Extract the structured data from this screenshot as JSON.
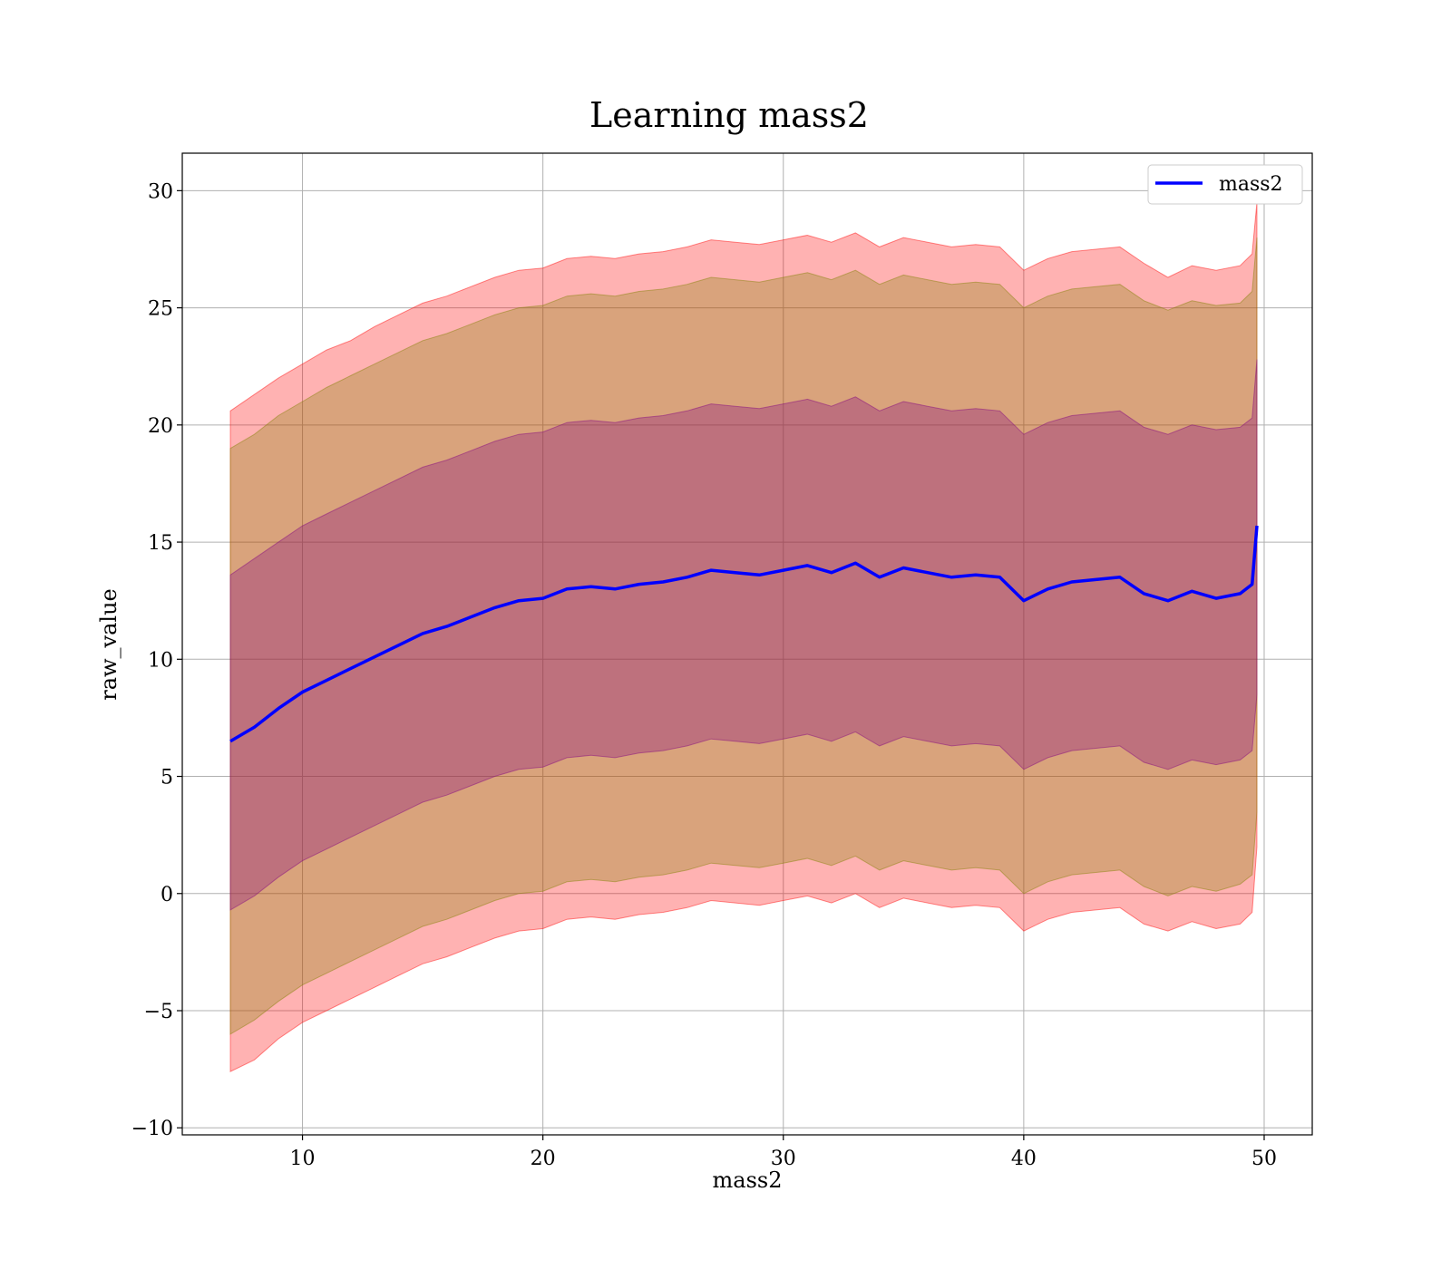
{
  "chart_data": {
    "type": "line",
    "title": "Learning mass2",
    "xlabel": "mass2",
    "ylabel": "raw_value",
    "xlim": [
      5,
      52
    ],
    "ylim": [
      -10.3,
      31.6
    ],
    "xticks": [
      10,
      20,
      30,
      40,
      50
    ],
    "yticks": [
      -10,
      -5,
      0,
      5,
      10,
      15,
      20,
      25,
      30
    ],
    "grid": true,
    "legend_position": "top-right",
    "series": [
      {
        "name": "mass2",
        "color": "#0000ff",
        "x": [
          7.0,
          8.0,
          9.0,
          10.0,
          11.0,
          12.0,
          13.0,
          14.0,
          15.0,
          16.0,
          17.0,
          18.0,
          19.0,
          20.0,
          21.0,
          22.0,
          23.0,
          24.0,
          25.0,
          26.0,
          27.0,
          28.0,
          29.0,
          30.0,
          31.0,
          32.0,
          33.0,
          34.0,
          35.0,
          36.0,
          37.0,
          38.0,
          39.0,
          40.0,
          41.0,
          42.0,
          43.0,
          44.0,
          45.0,
          46.0,
          47.0,
          48.0,
          49.0,
          49.5,
          49.7
        ],
        "values": [
          6.5,
          7.1,
          7.9,
          8.6,
          9.1,
          9.6,
          10.1,
          10.6,
          11.1,
          11.4,
          11.8,
          12.2,
          12.5,
          12.6,
          13.0,
          13.1,
          13.0,
          13.2,
          13.3,
          13.5,
          13.8,
          13.7,
          13.6,
          13.8,
          14.0,
          13.7,
          14.1,
          13.5,
          13.9,
          13.7,
          13.5,
          13.6,
          13.5,
          12.5,
          13.0,
          13.3,
          13.4,
          13.5,
          12.8,
          12.5,
          12.9,
          12.6,
          12.8,
          13.2,
          15.7
        ]
      }
    ],
    "bands": [
      {
        "color": "#ff0000",
        "opacity": 0.3,
        "x": [
          7.0,
          8.0,
          9.0,
          10.0,
          11.0,
          12.0,
          13.0,
          14.0,
          15.0,
          16.0,
          17.0,
          18.0,
          19.0,
          20.0,
          21.0,
          22.0,
          23.0,
          24.0,
          25.0,
          26.0,
          27.0,
          28.0,
          29.0,
          30.0,
          31.0,
          32.0,
          33.0,
          34.0,
          35.0,
          36.0,
          37.0,
          38.0,
          39.0,
          40.0,
          41.0,
          42.0,
          43.0,
          44.0,
          45.0,
          46.0,
          47.0,
          48.0,
          49.0,
          49.5,
          49.7
        ],
        "upper": [
          20.6,
          21.3,
          22.0,
          22.6,
          23.2,
          23.6,
          24.2,
          24.7,
          25.2,
          25.5,
          25.9,
          26.3,
          26.6,
          26.7,
          27.1,
          27.2,
          27.1,
          27.3,
          27.4,
          27.6,
          27.9,
          27.8,
          27.7,
          27.9,
          28.1,
          27.8,
          28.2,
          27.6,
          28.0,
          27.8,
          27.6,
          27.7,
          27.6,
          26.6,
          27.1,
          27.4,
          27.5,
          27.6,
          26.9,
          26.3,
          26.8,
          26.6,
          26.8,
          27.3,
          29.5
        ],
        "lower": [
          -7.6,
          -7.1,
          -6.2,
          -5.5,
          -5.0,
          -4.5,
          -4.0,
          -3.5,
          -3.0,
          -2.7,
          -2.3,
          -1.9,
          -1.6,
          -1.5,
          -1.1,
          -1.0,
          -1.1,
          -0.9,
          -0.8,
          -0.6,
          -0.3,
          -0.4,
          -0.5,
          -0.3,
          -0.1,
          -0.4,
          0.0,
          -0.6,
          -0.2,
          -0.4,
          -0.6,
          -0.5,
          -0.6,
          -1.6,
          -1.1,
          -0.8,
          -0.7,
          -0.6,
          -1.3,
          -1.6,
          -1.2,
          -1.5,
          -1.3,
          -0.8,
          2.0
        ]
      },
      {
        "color": "#808000",
        "opacity": 0.3,
        "x": [
          7.0,
          8.0,
          9.0,
          10.0,
          11.0,
          12.0,
          13.0,
          14.0,
          15.0,
          16.0,
          17.0,
          18.0,
          19.0,
          20.0,
          21.0,
          22.0,
          23.0,
          24.0,
          25.0,
          26.0,
          27.0,
          28.0,
          29.0,
          30.0,
          31.0,
          32.0,
          33.0,
          34.0,
          35.0,
          36.0,
          37.0,
          38.0,
          39.0,
          40.0,
          41.0,
          42.0,
          43.0,
          44.0,
          45.0,
          46.0,
          47.0,
          48.0,
          49.0,
          49.5,
          49.7
        ],
        "upper": [
          19.0,
          19.6,
          20.4,
          21.0,
          21.6,
          22.1,
          22.6,
          23.1,
          23.6,
          23.9,
          24.3,
          24.7,
          25.0,
          25.1,
          25.5,
          25.6,
          25.5,
          25.7,
          25.8,
          26.0,
          26.3,
          26.2,
          26.1,
          26.3,
          26.5,
          26.2,
          26.6,
          26.0,
          26.4,
          26.2,
          26.0,
          26.1,
          26.0,
          25.0,
          25.5,
          25.8,
          25.9,
          26.0,
          25.3,
          24.9,
          25.3,
          25.1,
          25.2,
          25.7,
          28.0
        ],
        "lower": [
          -6.0,
          -5.4,
          -4.6,
          -3.9,
          -3.4,
          -2.9,
          -2.4,
          -1.9,
          -1.4,
          -1.1,
          -0.7,
          -0.3,
          0.0,
          0.1,
          0.5,
          0.6,
          0.5,
          0.7,
          0.8,
          1.0,
          1.3,
          1.2,
          1.1,
          1.3,
          1.5,
          1.2,
          1.6,
          1.0,
          1.4,
          1.2,
          1.0,
          1.1,
          1.0,
          0.0,
          0.5,
          0.8,
          0.9,
          1.0,
          0.3,
          -0.1,
          0.3,
          0.1,
          0.4,
          0.8,
          3.5
        ]
      },
      {
        "color": "#800080",
        "opacity": 0.3,
        "x": [
          7.0,
          8.0,
          9.0,
          10.0,
          11.0,
          12.0,
          13.0,
          14.0,
          15.0,
          16.0,
          17.0,
          18.0,
          19.0,
          20.0,
          21.0,
          22.0,
          23.0,
          24.0,
          25.0,
          26.0,
          27.0,
          28.0,
          29.0,
          30.0,
          31.0,
          32.0,
          33.0,
          34.0,
          35.0,
          36.0,
          37.0,
          38.0,
          39.0,
          40.0,
          41.0,
          42.0,
          43.0,
          44.0,
          45.0,
          46.0,
          47.0,
          48.0,
          49.0,
          49.5,
          49.7
        ],
        "upper": [
          13.6,
          14.3,
          15.0,
          15.7,
          16.2,
          16.7,
          17.2,
          17.7,
          18.2,
          18.5,
          18.9,
          19.3,
          19.6,
          19.7,
          20.1,
          20.2,
          20.1,
          20.3,
          20.4,
          20.6,
          20.9,
          20.8,
          20.7,
          20.9,
          21.1,
          20.8,
          21.2,
          20.6,
          21.0,
          20.8,
          20.6,
          20.7,
          20.6,
          19.6,
          20.1,
          20.4,
          20.5,
          20.6,
          19.9,
          19.6,
          20.0,
          19.8,
          19.9,
          20.3,
          22.8
        ],
        "lower": [
          -0.7,
          -0.1,
          0.7,
          1.4,
          1.9,
          2.4,
          2.9,
          3.4,
          3.9,
          4.2,
          4.6,
          5.0,
          5.3,
          5.4,
          5.8,
          5.9,
          5.8,
          6.0,
          6.1,
          6.3,
          6.6,
          6.5,
          6.4,
          6.6,
          6.8,
          6.5,
          6.9,
          6.3,
          6.7,
          6.5,
          6.3,
          6.4,
          6.3,
          5.3,
          5.8,
          6.1,
          6.2,
          6.3,
          5.6,
          5.3,
          5.7,
          5.5,
          5.7,
          6.1,
          8.5
        ]
      }
    ]
  }
}
